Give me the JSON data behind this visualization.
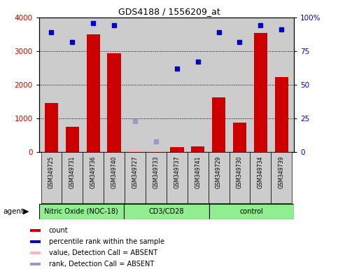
{
  "title": "GDS4188 / 1556209_at",
  "samples": [
    "GSM349725",
    "GSM349731",
    "GSM349736",
    "GSM349740",
    "GSM349727",
    "GSM349733",
    "GSM349737",
    "GSM349741",
    "GSM349729",
    "GSM349730",
    "GSM349734",
    "GSM349739"
  ],
  "groups": [
    {
      "label": "Nitric Oxide (NOC-18)",
      "start": 0,
      "end": 4
    },
    {
      "label": "CD3/CD28",
      "start": 4,
      "end": 8
    },
    {
      "label": "control",
      "start": 8,
      "end": 12
    }
  ],
  "bar_values": [
    1450,
    750,
    3500,
    2930,
    80,
    30,
    150,
    175,
    1620,
    870,
    3550,
    2220
  ],
  "bar_absent": [
    false,
    false,
    false,
    false,
    true,
    true,
    false,
    false,
    false,
    false,
    false,
    false
  ],
  "percentile_values": [
    89,
    82,
    96,
    94,
    null,
    null,
    62,
    67,
    89,
    82,
    94,
    91
  ],
  "percentile_absent_values": [
    null,
    null,
    null,
    null,
    23,
    8,
    null,
    null,
    null,
    null,
    null,
    null
  ],
  "bar_color": "#CC0000",
  "bar_absent_color": "#FFB6C1",
  "dot_color": "#0000CC",
  "dot_absent_color": "#9999CC",
  "ylim_left": [
    0,
    4000
  ],
  "ylim_right": [
    0,
    100
  ],
  "yticks_left": [
    0,
    1000,
    2000,
    3000,
    4000
  ],
  "yticks_right": [
    0,
    25,
    50,
    75,
    100
  ],
  "ytick_labels_right": [
    "0",
    "25",
    "50",
    "75",
    "100%"
  ],
  "plot_bg_color": "#cccccc",
  "green_color": "#90EE90",
  "background_color": "#ffffff",
  "legend_items": [
    {
      "color": "#CC0000",
      "label": "count"
    },
    {
      "color": "#0000CC",
      "label": "percentile rank within the sample"
    },
    {
      "color": "#FFB6C1",
      "label": "value, Detection Call = ABSENT"
    },
    {
      "color": "#9999CC",
      "label": "rank, Detection Call = ABSENT"
    }
  ]
}
